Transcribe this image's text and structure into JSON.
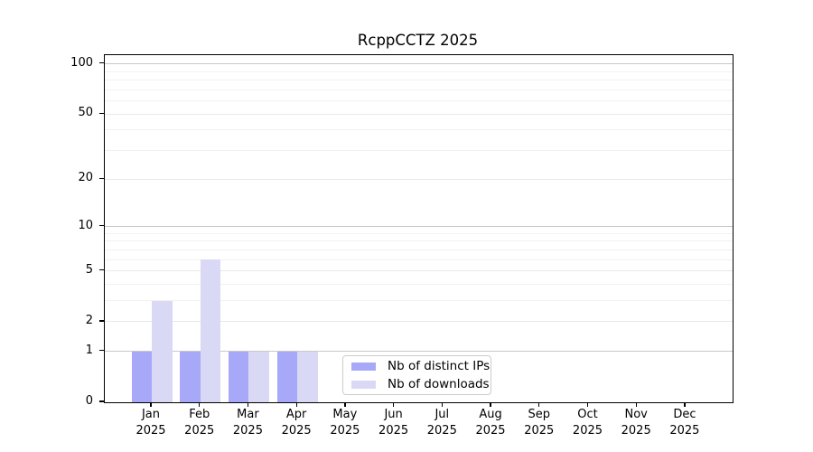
{
  "chart_data": {
    "type": "bar",
    "title": "RcppCCTZ 2025",
    "year_label": "2025",
    "categories": [
      "Jan",
      "Feb",
      "Mar",
      "Apr",
      "May",
      "Jun",
      "Jul",
      "Aug",
      "Sep",
      "Oct",
      "Nov",
      "Dec"
    ],
    "series": [
      {
        "name": "Nb of distinct IPs",
        "color": "#a8a8f8",
        "values": [
          1,
          1,
          1,
          1,
          0,
          0,
          0,
          0,
          0,
          0,
          0,
          0
        ]
      },
      {
        "name": "Nb of downloads",
        "color": "#d9d9f6",
        "values": [
          3,
          6,
          1,
          1,
          0,
          0,
          0,
          0,
          0,
          0,
          0,
          0
        ]
      }
    ],
    "xlabel": "",
    "ylabel": "",
    "y_scale": "log1p",
    "y_ticks": [
      0,
      1,
      2,
      5,
      10,
      20,
      50,
      100
    ],
    "y_decade_gridlines": [
      1,
      10,
      100
    ],
    "y_minor_gridlines": [
      3,
      4,
      6,
      7,
      8,
      9,
      30,
      40,
      60,
      70,
      80,
      90
    ],
    "ylim": [
      0,
      113
    ],
    "grid": "horizontal",
    "legend_position": "inside-bottom-center",
    "colors": {
      "axis": "#000000",
      "decade_gridline": "#c8c8c8",
      "minor_gridline": "#f1f1f1",
      "legend_border": "#cccccc"
    }
  }
}
